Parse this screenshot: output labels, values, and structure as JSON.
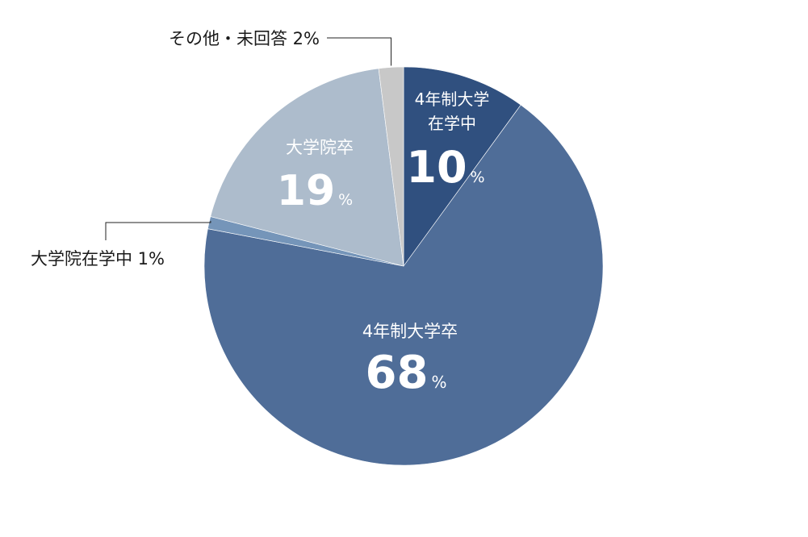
{
  "chart_data": {
    "type": "pie",
    "title": "",
    "unit": "%",
    "slices": [
      {
        "name_lines": [
          "4年制大学",
          "在学中"
        ],
        "value": 10,
        "color": "#30507f",
        "label_placement": "inside"
      },
      {
        "name_lines": [
          "4年制大学卒"
        ],
        "value": 68,
        "color": "#4f6d98",
        "label_placement": "inside"
      },
      {
        "name_lines": [
          "大学院在学中"
        ],
        "value": 1,
        "color": "#7595b9",
        "label_placement": "outside-left"
      },
      {
        "name_lines": [
          "大学院卒"
        ],
        "value": 19,
        "color": "#adbccc",
        "label_placement": "inside"
      },
      {
        "name_lines": [
          "その他・未回答"
        ],
        "value": 2,
        "color": "#c8c8c8",
        "label_placement": "outside-top"
      }
    ]
  }
}
